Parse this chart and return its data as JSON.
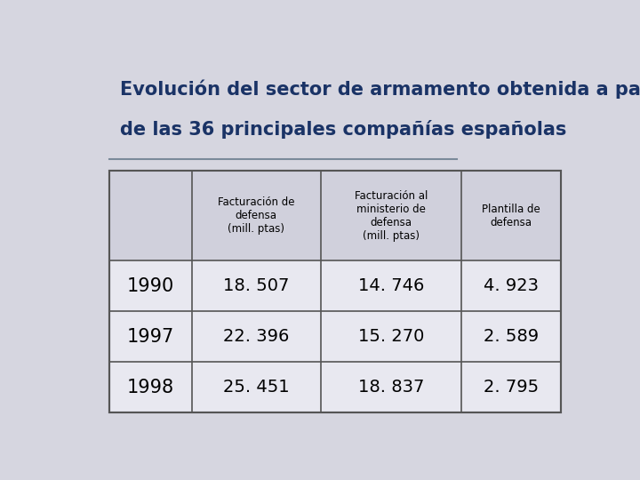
{
  "title_line1": "Evolución del sector de armamento obtenida a partir",
  "title_line2": "de las 36 principales compañías españolas",
  "title_color": "#1a3366",
  "background_color": "#d6d6e0",
  "col_headers": [
    "",
    "Facturación de\ndefensa\n(mill. ptas)",
    "Facturación al\nministerio de\ndefensa\n(mill. ptas)",
    "Plantilla de\ndefensa"
  ],
  "rows": [
    [
      "1990",
      "18. 507",
      "14. 746",
      "4. 923"
    ],
    [
      "1997",
      "22. 396",
      "15. 270",
      "2. 589"
    ],
    [
      "1998",
      "25. 451",
      "18. 837",
      "2. 795"
    ]
  ],
  "table_bg": "#e8e8f0",
  "header_row_bg": "#d0d0dc",
  "divider_color": "#7a8a9a",
  "cell_text_color": "#000000",
  "line_color": "#555555"
}
